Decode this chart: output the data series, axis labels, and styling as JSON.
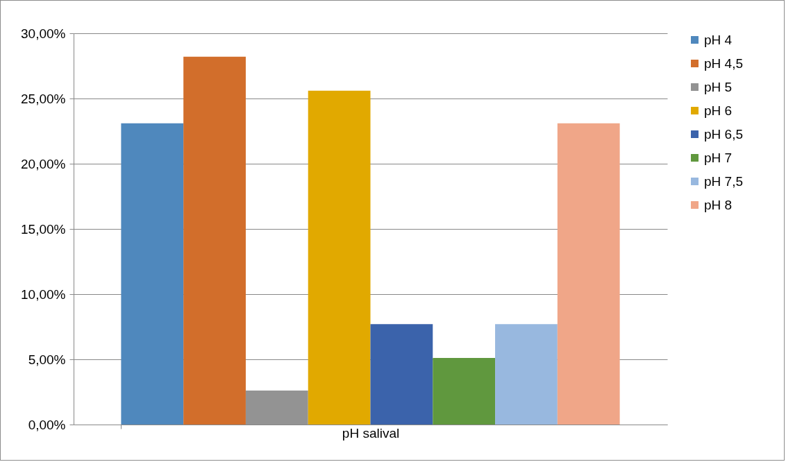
{
  "chart_data": {
    "type": "bar",
    "xlabel": "pH salival",
    "categories": [
      null
    ],
    "series": [
      {
        "name": "pH 4",
        "color": "#4f88bd",
        "values": [
          23.1
        ]
      },
      {
        "name": "pH 4,5",
        "color": "#d26e2b",
        "values": [
          28.2
        ]
      },
      {
        "name": "pH 5",
        "color": "#939393",
        "values": [
          2.6
        ]
      },
      {
        "name": "pH 6",
        "color": "#e1a900",
        "values": [
          25.6
        ]
      },
      {
        "name": "pH 6,5",
        "color": "#3b63ab",
        "values": [
          7.7
        ]
      },
      {
        "name": "pH 7",
        "color": "#60983e",
        "values": [
          5.1
        ]
      },
      {
        "name": "pH 7,5",
        "color": "#98b8df",
        "values": [
          7.7
        ]
      },
      {
        "name": "pH 8",
        "color": "#f0a688",
        "values": [
          23.1
        ]
      }
    ],
    "ylim": [
      0,
      30
    ],
    "yticks": [
      {
        "value": 0,
        "label": "0,00%"
      },
      {
        "value": 5,
        "label": "5,00%"
      },
      {
        "value": 10,
        "label": "10,00%"
      },
      {
        "value": 15,
        "label": "15,00%"
      },
      {
        "value": 20,
        "label": "20,00%"
      },
      {
        "value": 25,
        "label": "25,00%"
      },
      {
        "value": 30,
        "label": "30,00%"
      }
    ],
    "grid": "y",
    "legend": "right"
  }
}
